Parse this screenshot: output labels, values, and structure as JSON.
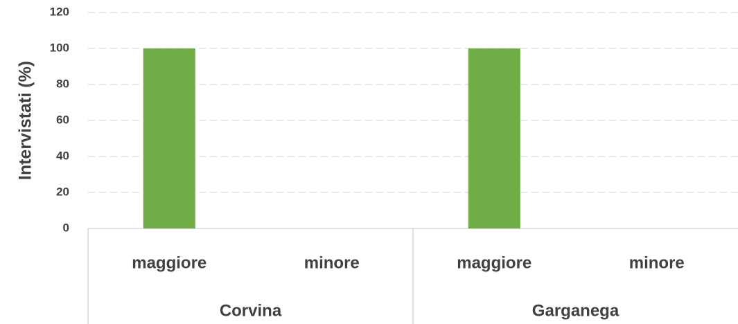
{
  "chart_data": {
    "type": "bar",
    "y_label": "Intervistati (%)",
    "categories": [
      "maggiore",
      "minore",
      "maggiore",
      "minore"
    ],
    "groups": [
      "Corvina",
      "Garganega"
    ],
    "values": [
      100,
      0,
      100,
      0
    ],
    "color": "#70ad47",
    "ylim": [
      0,
      120
    ],
    "yticks": [
      0,
      20,
      40,
      60,
      80,
      100,
      120
    ],
    "grid": true
  }
}
